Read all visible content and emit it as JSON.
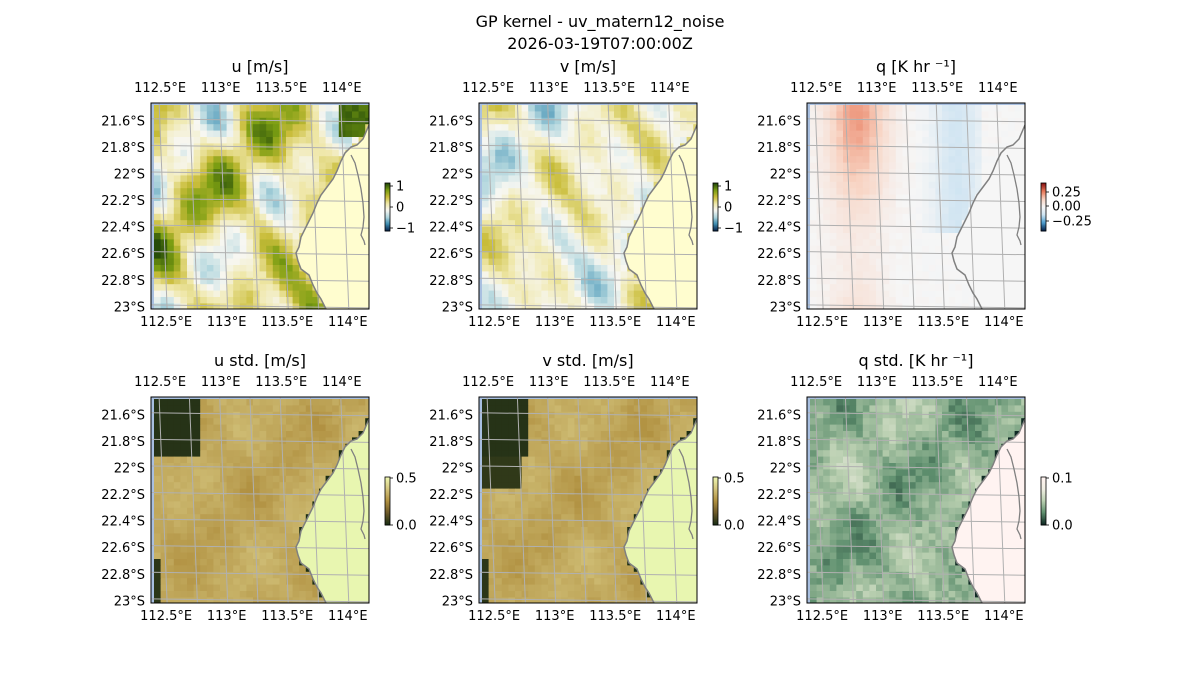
{
  "figure": {
    "title": "GP kernel - uv_matern12_noise",
    "subtitle": "2026-03-19T07:00:00Z"
  },
  "chart_data": [
    {
      "type": "heatmap",
      "id": "u",
      "title": "u [m/s]",
      "xticks": [
        "112.5°E",
        "113°E",
        "113.5°E",
        "114°E"
      ],
      "yticks": [
        "21.6°S",
        "21.8°S",
        "22°S",
        "22.2°S",
        "22.4°S",
        "22.6°S",
        "22.8°S",
        "23°S"
      ],
      "colorbar": {
        "ticks": [
          "1",
          "0",
          "−1"
        ],
        "range": [
          -1.3,
          1.3
        ],
        "colors": [
          "#0b2a52",
          "#3f8fb3",
          "#b3d7de",
          "#f7f7f2",
          "#efe7a8",
          "#c9bd3a",
          "#7a9d12",
          "#254b0a"
        ]
      },
      "style": "u"
    },
    {
      "type": "heatmap",
      "id": "v",
      "title": "v [m/s]",
      "xticks": [
        "112.5°E",
        "113°E",
        "113.5°E",
        "114°E"
      ],
      "yticks": [
        "21.6°S",
        "21.8°S",
        "22°S",
        "22.2°S",
        "22.4°S",
        "22.6°S",
        "22.8°S",
        "23°S"
      ],
      "colorbar": {
        "ticks": [
          "1",
          "0",
          "−1"
        ],
        "range": [
          -1.3,
          1.3
        ],
        "colors": [
          "#0b2a52",
          "#3f8fb3",
          "#b3d7de",
          "#f7f7f2",
          "#efe7a8",
          "#c9bd3a",
          "#7a9d12",
          "#254b0a"
        ]
      },
      "style": "v"
    },
    {
      "type": "heatmap",
      "id": "q",
      "title": "q [K hr ⁻¹]",
      "xticks": [
        "112.5°E",
        "113°E",
        "113.5°E",
        "114°E"
      ],
      "yticks": [
        "21.6°S",
        "21.8°S",
        "22°S",
        "22.2°S",
        "22.4°S",
        "22.6°S",
        "22.8°S",
        "23°S"
      ],
      "colorbar": {
        "ticks": [
          "0.25",
          "0.00",
          "−0.25"
        ],
        "range": [
          -0.4,
          0.4
        ],
        "colors": [
          "#08264f",
          "#4e9fd0",
          "#cfe4f2",
          "#f6f6f6",
          "#f8d3c2",
          "#e8795a",
          "#8b1414"
        ]
      },
      "style": "q"
    },
    {
      "type": "heatmap",
      "id": "u_std",
      "title": "u std. [m/s]",
      "xticks": [
        "112.5°E",
        "113°E",
        "113.5°E",
        "114°E"
      ],
      "yticks": [
        "21.6°S",
        "21.8°S",
        "22°S",
        "22.2°S",
        "22.4°S",
        "22.6°S",
        "22.8°S",
        "23°S"
      ],
      "colorbar": {
        "ticks": [
          "0.5",
          "0.0"
        ],
        "range": [
          0,
          0.65
        ],
        "colors": [
          "#1c2e14",
          "#6e5a2a",
          "#b09040",
          "#d3c37c",
          "#eef6b0"
        ]
      },
      "style": "ustd"
    },
    {
      "type": "heatmap",
      "id": "v_std",
      "title": "v std. [m/s]",
      "xticks": [
        "112.5°E",
        "113°E",
        "113.5°E",
        "114°E"
      ],
      "yticks": [
        "21.6°S",
        "21.8°S",
        "22°S",
        "22.2°S",
        "22.4°S",
        "22.6°S",
        "22.8°S",
        "23°S"
      ],
      "colorbar": {
        "ticks": [
          "0.5",
          "0.0"
        ],
        "range": [
          0,
          0.65
        ],
        "colors": [
          "#1c2e14",
          "#6e5a2a",
          "#b09040",
          "#d3c37c",
          "#eef6b0"
        ]
      },
      "style": "vstd"
    },
    {
      "type": "heatmap",
      "id": "q_std",
      "title": "q std. [K hr ⁻¹]",
      "xticks": [
        "112.5°E",
        "113°E",
        "113.5°E",
        "114°E"
      ],
      "yticks": [
        "21.6°S",
        "21.8°S",
        "22°S",
        "22.2°S",
        "22.4°S",
        "22.6°S",
        "22.8°S",
        "23°S"
      ],
      "colorbar": {
        "ticks": [
          "0.1",
          "0.0"
        ],
        "range": [
          0,
          0.13
        ],
        "colors": [
          "#0f2a24",
          "#5e8f6e",
          "#b9cfb0",
          "#efeee2",
          "#fff3f0"
        ]
      },
      "style": "qstd"
    }
  ]
}
